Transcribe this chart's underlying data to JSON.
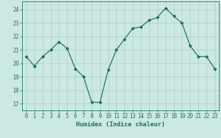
{
  "x": [
    0,
    1,
    2,
    3,
    4,
    5,
    6,
    7,
    8,
    9,
    10,
    11,
    12,
    13,
    14,
    15,
    16,
    17,
    18,
    19,
    20,
    21,
    22,
    23
  ],
  "y": [
    20.5,
    19.8,
    20.5,
    21.0,
    21.6,
    21.1,
    19.6,
    19.0,
    17.1,
    17.1,
    19.5,
    21.0,
    21.8,
    22.6,
    22.7,
    23.2,
    23.4,
    24.1,
    23.5,
    23.0,
    21.3,
    20.5,
    20.5,
    19.6
  ],
  "line_color": "#1a7060",
  "marker_color": "#1a7060",
  "bg_color": "#cce8e2",
  "grid_color": "#aed0ca",
  "xlabel": "Humidex (Indice chaleur)",
  "ylim": [
    16.5,
    24.6
  ],
  "xlim": [
    -0.5,
    23.5
  ],
  "yticks": [
    17,
    18,
    19,
    20,
    21,
    22,
    23,
    24
  ],
  "xticks": [
    0,
    1,
    2,
    3,
    4,
    5,
    6,
    7,
    8,
    9,
    10,
    11,
    12,
    13,
    14,
    15,
    16,
    17,
    18,
    19,
    20,
    21,
    22,
    23
  ],
  "label_fontsize": 6.5,
  "tick_fontsize": 5.5
}
